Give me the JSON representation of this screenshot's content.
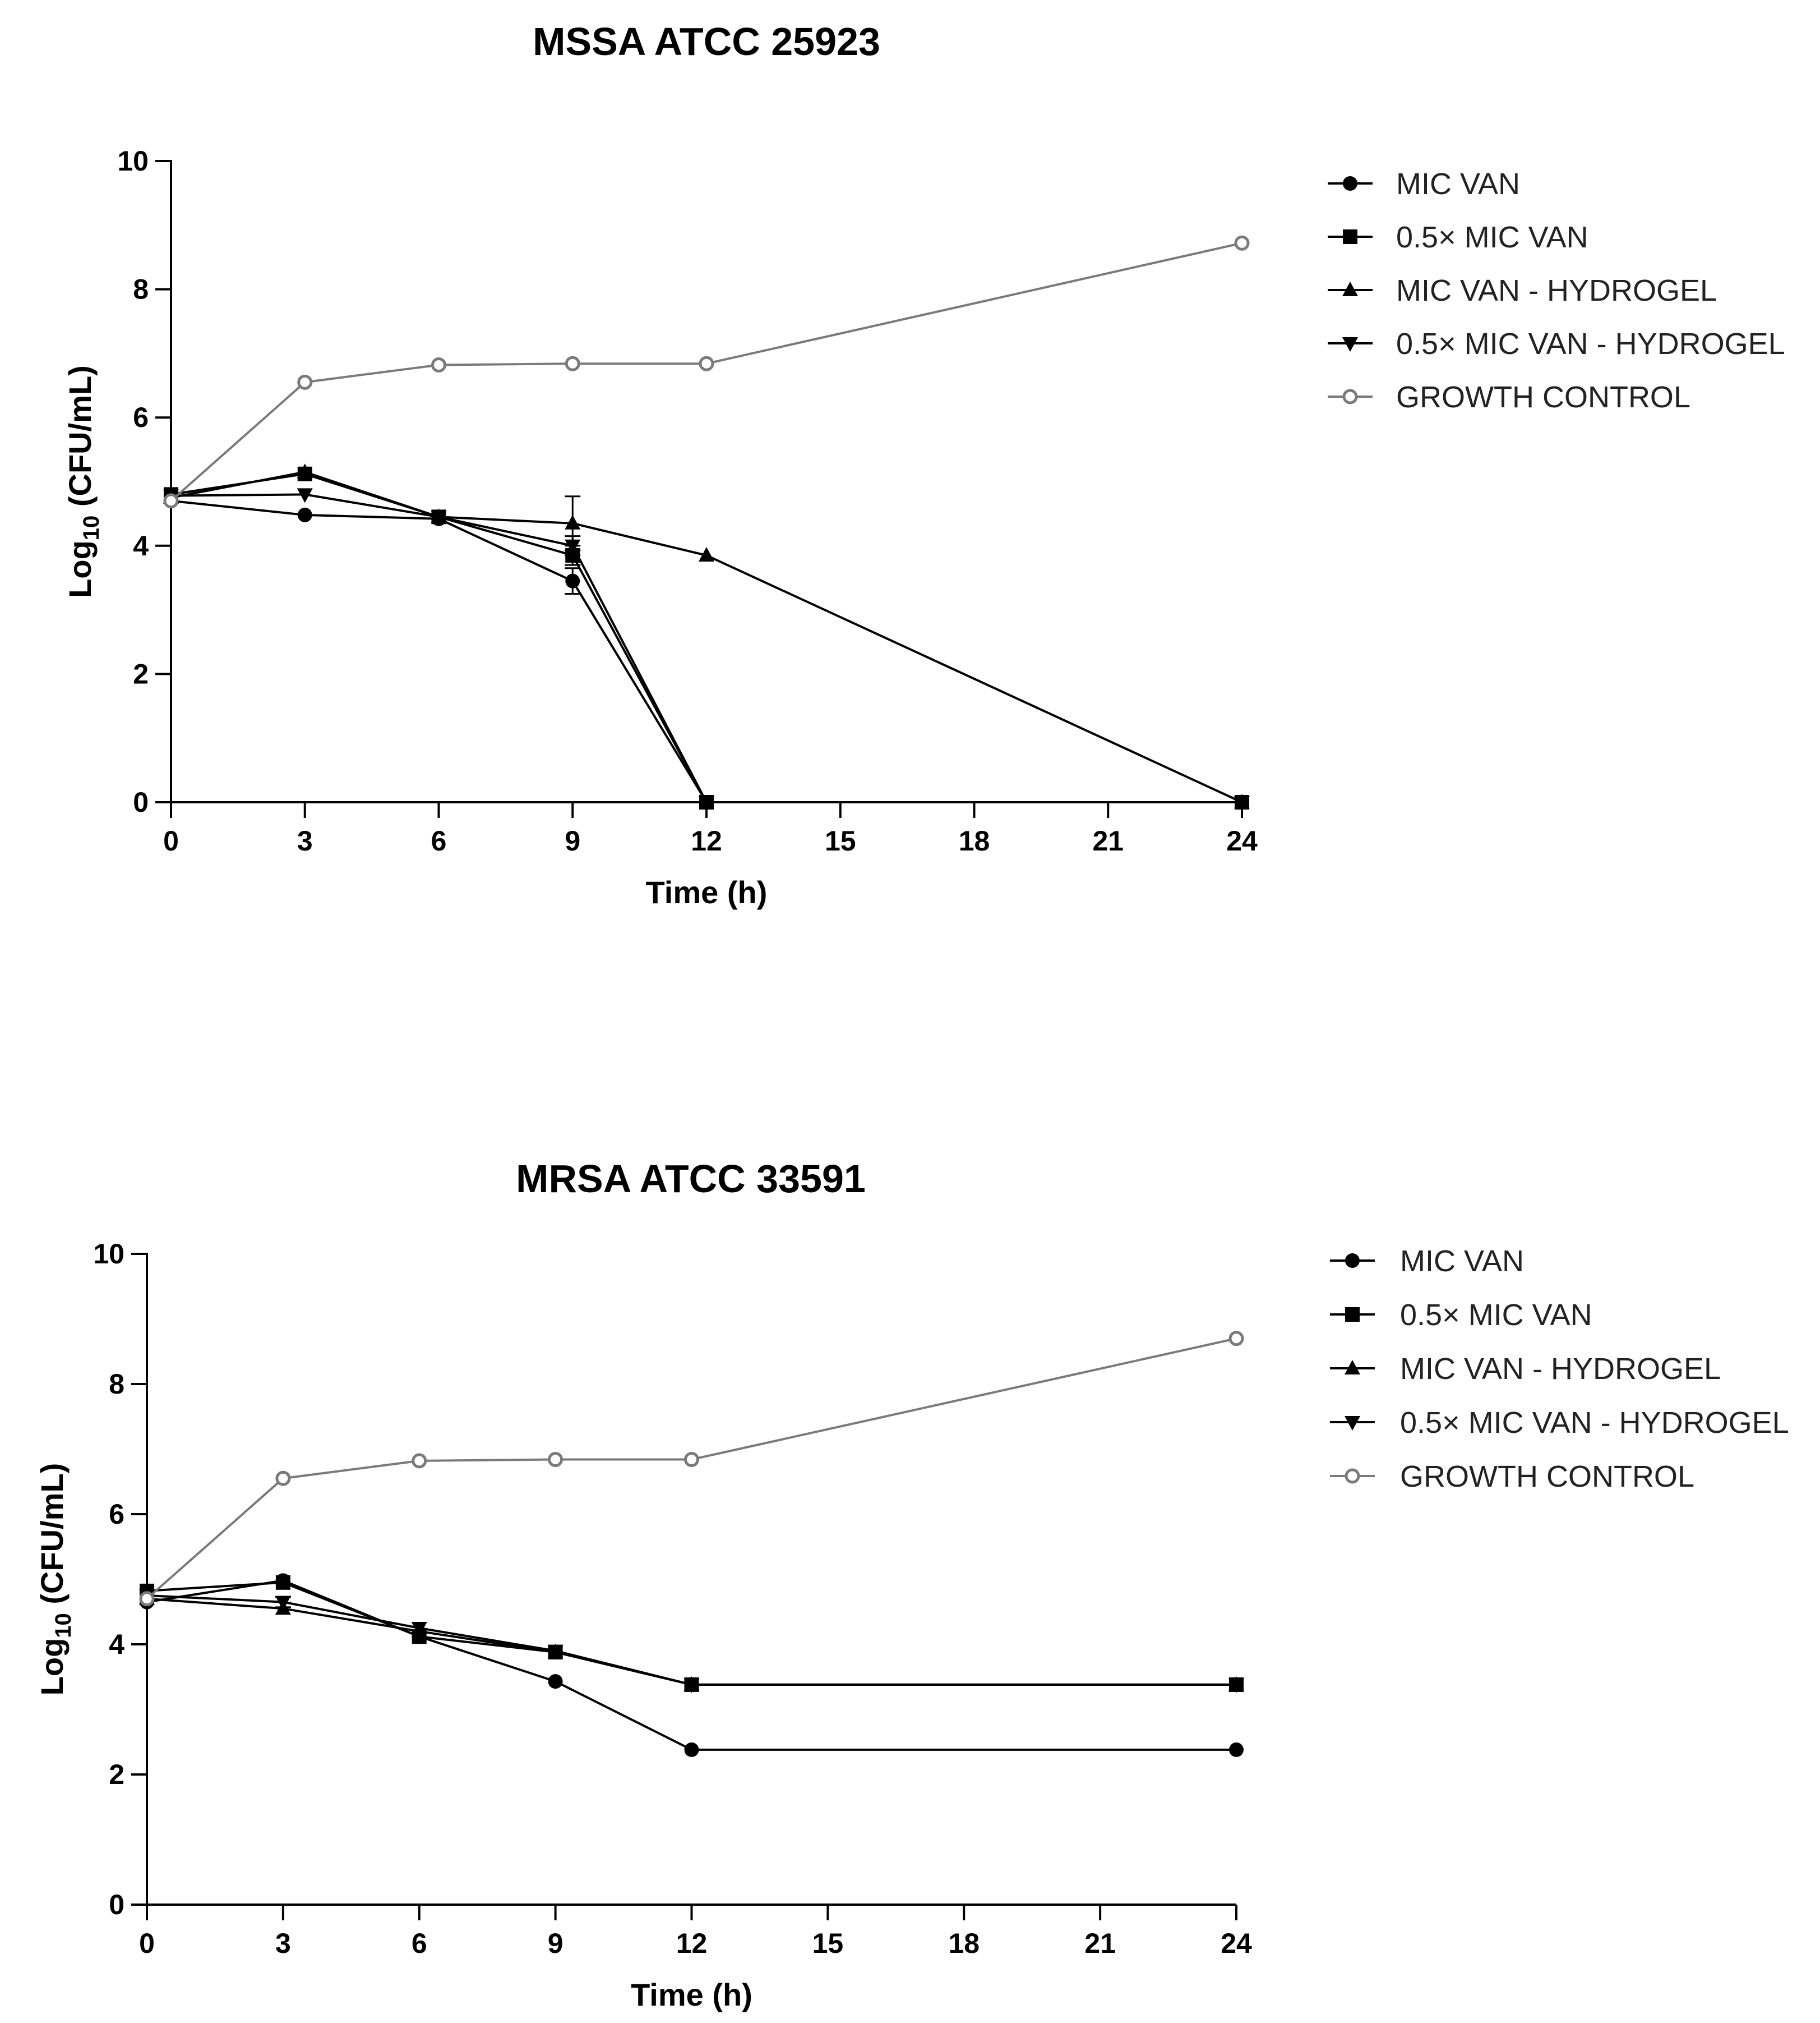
{
  "chart_data": [
    {
      "type": "line",
      "title": "MSSA ATCC 25923",
      "xlabel": "Time (h)",
      "ylabel_prefix": "Log",
      "ylabel_subscript": "10",
      "ylabel_suffix": " (CFU/mL)",
      "x_ticks": [
        "0",
        "3",
        "6",
        "9",
        "12",
        "15",
        "18",
        "21",
        "24"
      ],
      "y_ticks": [
        "0",
        "2",
        "4",
        "6",
        "8",
        "10"
      ],
      "ylim": [
        0,
        10
      ],
      "x": [
        0,
        3,
        6,
        9,
        12,
        24
      ],
      "legend_position": "top-right",
      "series": [
        {
          "name": "MIC VAN",
          "marker": "circle",
          "color": "#000000",
          "values": [
            4.7,
            4.48,
            4.42,
            3.45,
            0,
            0
          ],
          "errors": [
            0,
            0,
            0,
            0.2,
            0,
            0
          ]
        },
        {
          "name": "0.5× MIC VAN",
          "marker": "square",
          "color": "#000000",
          "values": [
            4.8,
            5.12,
            4.45,
            3.85,
            0,
            0
          ],
          "errors": [
            0,
            0,
            0,
            0.15,
            0,
            0
          ]
        },
        {
          "name": "MIC VAN - HYDROGEL",
          "marker": "triangle-up",
          "color": "#000000",
          "values": [
            4.75,
            5.15,
            4.45,
            4.35,
            3.85,
            0
          ],
          "errors": [
            0,
            0,
            0,
            0.42,
            0,
            0
          ]
        },
        {
          "name": "0.5× MIC VAN - HYDROGEL",
          "marker": "triangle-down",
          "color": "#000000",
          "values": [
            4.78,
            4.8,
            4.45,
            4.0,
            0,
            0
          ],
          "errors": [
            0,
            0,
            0,
            0.15,
            0,
            0
          ]
        },
        {
          "name": "GROWTH CONTROL",
          "marker": "open-circle",
          "color": "#7a7a7a",
          "values": [
            4.7,
            6.55,
            6.82,
            6.84,
            6.84,
            8.72
          ],
          "errors": [
            0,
            0,
            0,
            0,
            0,
            0
          ]
        }
      ]
    },
    {
      "type": "line",
      "title": "MRSA ATCC 33591",
      "xlabel": "Time (h)",
      "ylabel_prefix": "Log",
      "ylabel_subscript": "10",
      "ylabel_suffix": " (CFU/mL)",
      "x_ticks": [
        "0",
        "3",
        "6",
        "9",
        "12",
        "15",
        "18",
        "21",
        "24"
      ],
      "y_ticks": [
        "0",
        "2",
        "4",
        "6",
        "8",
        "10"
      ],
      "ylim": [
        0,
        10
      ],
      "x": [
        0,
        3,
        6,
        9,
        12,
        24
      ],
      "legend_position": "top-right",
      "series": [
        {
          "name": "MIC VAN",
          "marker": "circle",
          "color": "#000000",
          "values": [
            4.65,
            4.98,
            4.12,
            3.43,
            2.38,
            2.38
          ],
          "errors": [
            0,
            0,
            0,
            0,
            0,
            0
          ]
        },
        {
          "name": "0.5× MIC VAN",
          "marker": "square",
          "color": "#000000",
          "values": [
            4.82,
            4.95,
            4.12,
            3.88,
            3.38,
            3.38
          ],
          "errors": [
            0,
            0,
            0,
            0,
            0,
            0
          ]
        },
        {
          "name": "MIC VAN - HYDROGEL",
          "marker": "triangle-up",
          "color": "#000000",
          "values": [
            4.7,
            4.55,
            4.2,
            3.88,
            3.38,
            3.38
          ],
          "errors": [
            0,
            0,
            0,
            0,
            0,
            0
          ]
        },
        {
          "name": "0.5× MIC VAN - HYDROGEL",
          "marker": "triangle-down",
          "color": "#000000",
          "values": [
            4.75,
            4.65,
            4.25,
            3.9,
            3.38,
            3.38
          ],
          "errors": [
            0,
            0.08,
            0,
            0,
            0,
            0
          ]
        },
        {
          "name": "GROWTH CONTROL",
          "marker": "open-circle",
          "color": "#7a7a7a",
          "values": [
            4.7,
            6.55,
            6.82,
            6.84,
            6.84,
            8.7
          ],
          "errors": [
            0,
            0,
            0,
            0,
            0,
            0
          ]
        }
      ]
    }
  ]
}
